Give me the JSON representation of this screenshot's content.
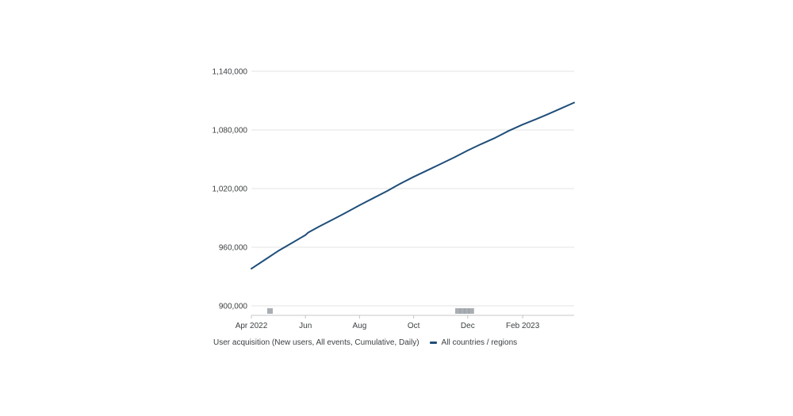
{
  "chart_data": {
    "type": "line",
    "title": "",
    "xlabel": "",
    "ylabel": "",
    "x_tick_labels": [
      "Apr 2022",
      "Jun",
      "Aug",
      "Oct",
      "Dec",
      "Feb 2023"
    ],
    "y_tick_labels": [
      "1,140,000",
      "1,080,000",
      "1,020,000",
      "960,000",
      "900,000"
    ],
    "y_ticks": [
      1140000,
      1080000,
      1020000,
      960000,
      900000
    ],
    "ylim": [
      890000,
      1140000
    ],
    "xlim": [
      "2022-04-01",
      "2023-03-31"
    ],
    "grid": true,
    "legend_position": "bottom-left",
    "legend_prefix": "User acquisition (New users, All events, Cumulative, Daily)",
    "series": [
      {
        "name": "All countries / regions",
        "color": "#1f4e79",
        "x": [
          "2022-04-01",
          "2022-04-16",
          "2022-05-01",
          "2022-05-16",
          "2022-06-01",
          "2022-06-04",
          "2022-06-16",
          "2022-07-01",
          "2022-07-16",
          "2022-08-01",
          "2022-08-16",
          "2022-09-01",
          "2022-09-16",
          "2022-10-01",
          "2022-10-16",
          "2022-11-01",
          "2022-11-16",
          "2022-12-01",
          "2022-12-16",
          "2023-01-01",
          "2023-01-16",
          "2023-02-01",
          "2023-02-16",
          "2023-03-01",
          "2023-03-16",
          "2023-03-31"
        ],
        "values": [
          938000,
          947000,
          956000,
          964000,
          972500,
          975000,
          981000,
          988000,
          995000,
          1003000,
          1010000,
          1017500,
          1025000,
          1032000,
          1038500,
          1045500,
          1052000,
          1059000,
          1065500,
          1072000,
          1079000,
          1085500,
          1091000,
          1096000,
          1102000,
          1108000
        ]
      }
    ],
    "annotation_markers": [
      {
        "date": "2022-04-22"
      },
      {
        "date": "2022-11-20"
      },
      {
        "date": "2022-11-25"
      },
      {
        "date": "2022-11-30"
      },
      {
        "date": "2022-12-05"
      }
    ]
  }
}
